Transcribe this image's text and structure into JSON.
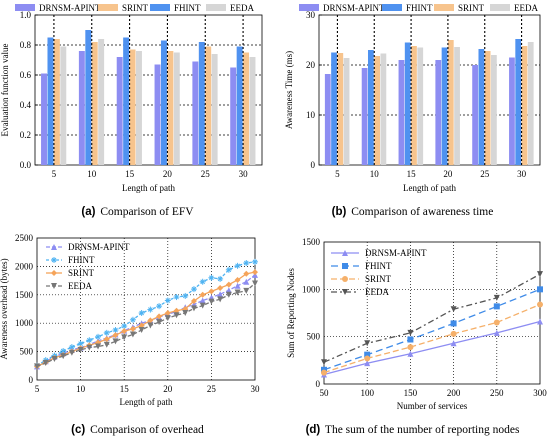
{
  "captions": [
    {
      "letter": "(a)",
      "text": "Comparison of EFV"
    },
    {
      "letter": "(b)",
      "text": "Comparison of awareness time"
    },
    {
      "letter": "(c)",
      "text": "Comparison of overhead"
    },
    {
      "letter": "(d)",
      "text": "The sum of the number of reporting nodes"
    }
  ],
  "chart_data": [
    {
      "id": "a",
      "type": "bar",
      "xlabel": "Length of path",
      "ylabel": "Evaluation function value",
      "categories": [
        "5",
        "10",
        "15",
        "20",
        "25",
        "30"
      ],
      "ylim": [
        0,
        1.0
      ],
      "yticks": [
        "0.0",
        "0.2",
        "0.4",
        "0.6",
        "0.8",
        "1.0"
      ],
      "legend_position": "top",
      "series": [
        {
          "name": "DRNSM-APINT",
          "color": "#8d8df2",
          "values": [
            0.61,
            0.76,
            0.72,
            0.67,
            0.69,
            0.65
          ]
        },
        {
          "name": "SRINT",
          "color": "#f7c48d",
          "values": [
            0.84,
            0.82,
            0.77,
            0.76,
            0.79,
            0.75
          ]
        },
        {
          "name": "FHINT",
          "color": "#4f92f0",
          "values": [
            0.85,
            0.9,
            0.85,
            0.83,
            0.82,
            0.79
          ]
        },
        {
          "name": "EEDA",
          "color": "#d6d6d6",
          "values": [
            0.79,
            0.84,
            0.76,
            0.75,
            0.74,
            0.72
          ]
        }
      ],
      "bar_order": [
        0,
        2,
        1,
        3
      ]
    },
    {
      "id": "b",
      "type": "bar",
      "xlabel": "Length of path",
      "ylabel": "Awareness Time (ms)",
      "categories": [
        "5",
        "10",
        "15",
        "20",
        "25",
        "30"
      ],
      "ylim": [
        0,
        30
      ],
      "yticks": [
        "0",
        "10",
        "20",
        "30"
      ],
      "legend_position": "top",
      "series": [
        {
          "name": "DRNSM-APINT",
          "color": "#8d8df2",
          "values": [
            18.2,
            19.4,
            21.0,
            21.0,
            20.0,
            21.5
          ]
        },
        {
          "name": "FHINT",
          "color": "#4f92f0",
          "values": [
            22.5,
            23.0,
            24.5,
            23.5,
            23.2,
            25.2
          ]
        },
        {
          "name": "SRINT",
          "color": "#f7c48d",
          "values": [
            22.4,
            21.8,
            23.8,
            25.0,
            22.8,
            23.8
          ]
        },
        {
          "name": "EEDA",
          "color": "#d6d6d6",
          "values": [
            21.4,
            22.3,
            23.5,
            23.6,
            22.0,
            24.6
          ]
        }
      ],
      "bar_order": [
        0,
        1,
        2,
        3
      ]
    },
    {
      "id": "c",
      "type": "line",
      "xlabel": "Length of path",
      "ylabel": "Awareness overhead (bytes)",
      "x": [
        5,
        6,
        7,
        8,
        9,
        10,
        11,
        12,
        13,
        14,
        15,
        16,
        17,
        18,
        19,
        20,
        21,
        22,
        23,
        24,
        25,
        26,
        27,
        28,
        29,
        30
      ],
      "xlim": [
        5,
        30
      ],
      "ylim": [
        0,
        2500
      ],
      "xticks": [
        5,
        10,
        15,
        20,
        25,
        30
      ],
      "yticks": [
        0,
        500,
        1000,
        1500,
        2000,
        2500
      ],
      "legend_position": "top-left",
      "series": [
        {
          "name": "DRNSM-APINT",
          "color": "#8d8df2",
          "marker": "triangle-up",
          "dash": "4,2",
          "values": [
            240,
            330,
            410,
            470,
            530,
            570,
            620,
            690,
            740,
            800,
            870,
            930,
            1000,
            1050,
            1110,
            1160,
            1200,
            1280,
            1330,
            1400,
            1450,
            1510,
            1580,
            1660,
            1730,
            1850
          ]
        },
        {
          "name": "FHINT",
          "color": "#4fb3f2",
          "marker": "star",
          "dash": "3,2",
          "values": [
            250,
            350,
            430,
            510,
            580,
            640,
            700,
            760,
            830,
            880,
            950,
            1060,
            1180,
            1240,
            1300,
            1400,
            1460,
            1480,
            1600,
            1730,
            1800,
            1780,
            1940,
            2010,
            2060,
            2080
          ]
        },
        {
          "name": "SRINT",
          "color": "#f5a45a",
          "marker": "diamond",
          "dash": "",
          "values": [
            240,
            310,
            390,
            440,
            500,
            560,
            610,
            660,
            720,
            790,
            860,
            900,
            960,
            1050,
            1120,
            1180,
            1220,
            1250,
            1390,
            1500,
            1560,
            1620,
            1680,
            1760,
            1870,
            1900
          ]
        },
        {
          "name": "EEDA",
          "color": "#777777",
          "marker": "triangle-down",
          "dash": "4,2",
          "values": [
            240,
            300,
            370,
            420,
            480,
            530,
            570,
            590,
            620,
            680,
            750,
            800,
            880,
            960,
            1020,
            1090,
            1140,
            1180,
            1260,
            1310,
            1380,
            1420,
            1500,
            1540,
            1570,
            1700
          ]
        }
      ]
    },
    {
      "id": "d",
      "type": "line",
      "xlabel": "Number of services",
      "ylabel": "Sum of Reporting Nodes",
      "x": [
        50,
        100,
        150,
        200,
        250,
        300
      ],
      "xlim": [
        50,
        300
      ],
      "ylim": [
        0,
        1500
      ],
      "xticks": [
        50,
        100,
        150,
        200,
        250,
        300
      ],
      "yticks": [
        0,
        500,
        1000,
        1500
      ],
      "legend_position": "top-left",
      "series": [
        {
          "name": "DRNSM-APINT",
          "color": "#8d8df2",
          "marker": "triangle-up",
          "dash": "",
          "values": [
            100,
            220,
            320,
            430,
            540,
            660
          ]
        },
        {
          "name": "FHINT",
          "color": "#3f8be8",
          "marker": "square",
          "dash": "7,4",
          "values": [
            150,
            310,
            470,
            640,
            820,
            1000
          ]
        },
        {
          "name": "SRINT",
          "color": "#f5b06a",
          "marker": "circle",
          "dash": "6,3",
          "values": [
            120,
            270,
            390,
            530,
            650,
            840
          ]
        },
        {
          "name": "EEDA",
          "color": "#555555",
          "marker": "triangle-down",
          "dash": "6,3,2,3",
          "values": [
            230,
            430,
            540,
            790,
            910,
            1160
          ]
        }
      ]
    }
  ]
}
